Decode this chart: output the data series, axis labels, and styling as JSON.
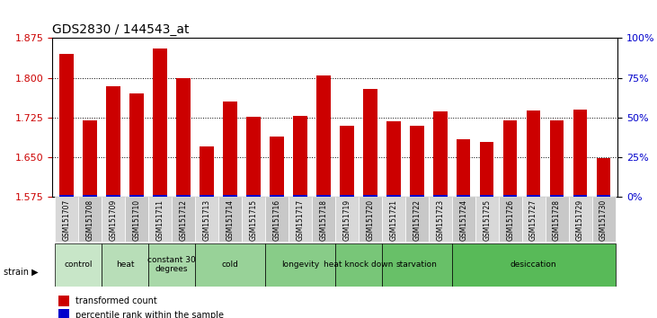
{
  "title": "GDS2830 / 144543_at",
  "samples": [
    "GSM151707",
    "GSM151708",
    "GSM151709",
    "GSM151710",
    "GSM151711",
    "GSM151712",
    "GSM151713",
    "GSM151714",
    "GSM151715",
    "GSM151716",
    "GSM151717",
    "GSM151718",
    "GSM151719",
    "GSM151720",
    "GSM151721",
    "GSM151722",
    "GSM151723",
    "GSM151724",
    "GSM151725",
    "GSM151726",
    "GSM151727",
    "GSM151728",
    "GSM151729",
    "GSM151730"
  ],
  "red_values": [
    1.845,
    1.72,
    1.785,
    1.77,
    1.855,
    1.8,
    1.67,
    1.755,
    1.727,
    1.69,
    1.728,
    1.805,
    1.71,
    1.78,
    1.718,
    1.71,
    1.737,
    1.685,
    1.68,
    1.72,
    1.738,
    1.72,
    1.74,
    1.648
  ],
  "blue_values": [
    0.005,
    0.005,
    0.005,
    0.005,
    0.005,
    0.005,
    0.005,
    0.005,
    0.005,
    0.005,
    0.005,
    0.005,
    0.005,
    0.005,
    0.005,
    0.005,
    0.005,
    0.005,
    0.005,
    0.005,
    0.005,
    0.005,
    0.005,
    0.005
  ],
  "ymin": 1.575,
  "ymax": 1.875,
  "yticks_left": [
    1.575,
    1.65,
    1.725,
    1.8,
    1.875
  ],
  "yticks_right": [
    0,
    25,
    50,
    75,
    100
  ],
  "ytick_labels_right": [
    "0%",
    "25%",
    "50%",
    "75%",
    "100%"
  ],
  "ylabel_left_color": "#cc0000",
  "ylabel_right_color": "#0000cc",
  "bar_color_red": "#cc0000",
  "bar_color_blue": "#0000cc",
  "groups": [
    {
      "label": "control",
      "start": 0,
      "end": 2,
      "color": "#c8e6c8"
    },
    {
      "label": "heat",
      "start": 2,
      "end": 4,
      "color": "#c8e6c8"
    },
    {
      "label": "constant 30\ndegrees",
      "start": 4,
      "end": 6,
      "color": "#b0d8b0"
    },
    {
      "label": "cold",
      "start": 6,
      "end": 9,
      "color": "#c8e6c8"
    },
    {
      "label": "longevity",
      "start": 9,
      "end": 12,
      "color": "#c8e6c8"
    },
    {
      "label": "heat knock down",
      "start": 12,
      "end": 14,
      "color": "#b0d8b0"
    },
    {
      "label": "starvation",
      "start": 14,
      "end": 17,
      "color": "#90c890"
    },
    {
      "label": "desiccation",
      "start": 17,
      "end": 24,
      "color": "#70c070"
    }
  ],
  "legend_items": [
    {
      "label": "transformed count",
      "color": "#cc0000"
    },
    {
      "label": "percentile rank within the sample",
      "color": "#0000cc"
    }
  ],
  "strain_label": "strain",
  "background_color": "#ffffff",
  "grid_color": "#000000",
  "tick_bg_color": "#d0d0d0"
}
